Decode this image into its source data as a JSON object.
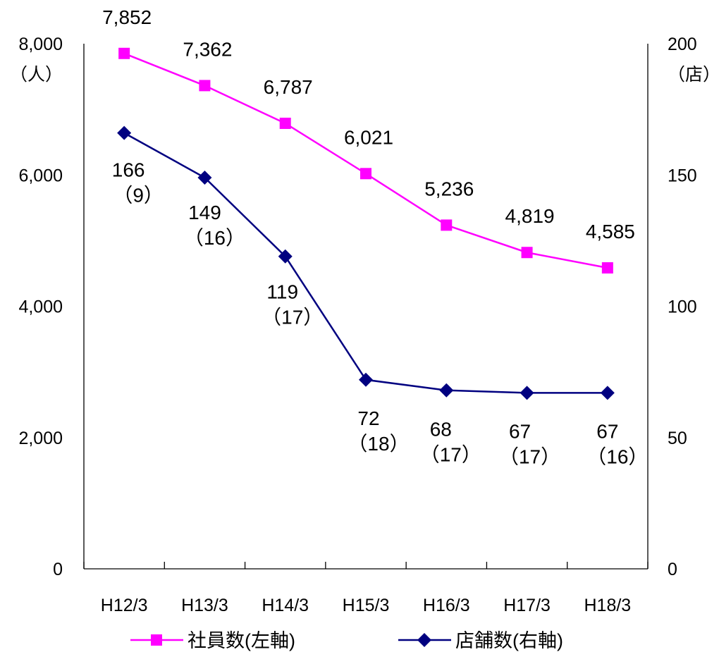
{
  "chart_data": {
    "type": "line",
    "categories": [
      "H12/3",
      "H13/3",
      "H14/3",
      "H15/3",
      "H16/3",
      "H17/3",
      "H18/3"
    ],
    "left_axis": {
      "ylim": [
        0,
        8000
      ],
      "ticks": [
        "0",
        "2,000",
        "4,000",
        "6,000",
        "8,000"
      ],
      "unit": "（人）"
    },
    "right_axis": {
      "ylim": [
        0,
        200
      ],
      "ticks": [
        "0",
        "50",
        "100",
        "150",
        "200"
      ],
      "unit": "（店）"
    },
    "series": [
      {
        "name": "社員数(左軸)",
        "axis": "left",
        "color": "#ff00ff",
        "marker": "square",
        "values": [
          7852,
          7362,
          6787,
          6021,
          5236,
          4819,
          4585
        ],
        "labels": [
          "7,852",
          "7,362",
          "6,787",
          "6,021",
          "5,236",
          "4,819",
          "4,585"
        ]
      },
      {
        "name": "店舗数(右軸)",
        "axis": "right",
        "color": "#000080",
        "marker": "diamond",
        "values": [
          166,
          149,
          119,
          72,
          68,
          67,
          67
        ],
        "labels": [
          "166",
          "149",
          "119",
          "72",
          "68",
          "67",
          "67"
        ],
        "sublabels": [
          "（9）",
          "（16）",
          "（17）",
          "（18）",
          "（17）",
          "（17）",
          "（16）"
        ]
      }
    ],
    "grid": false,
    "legend_position": "bottom"
  }
}
